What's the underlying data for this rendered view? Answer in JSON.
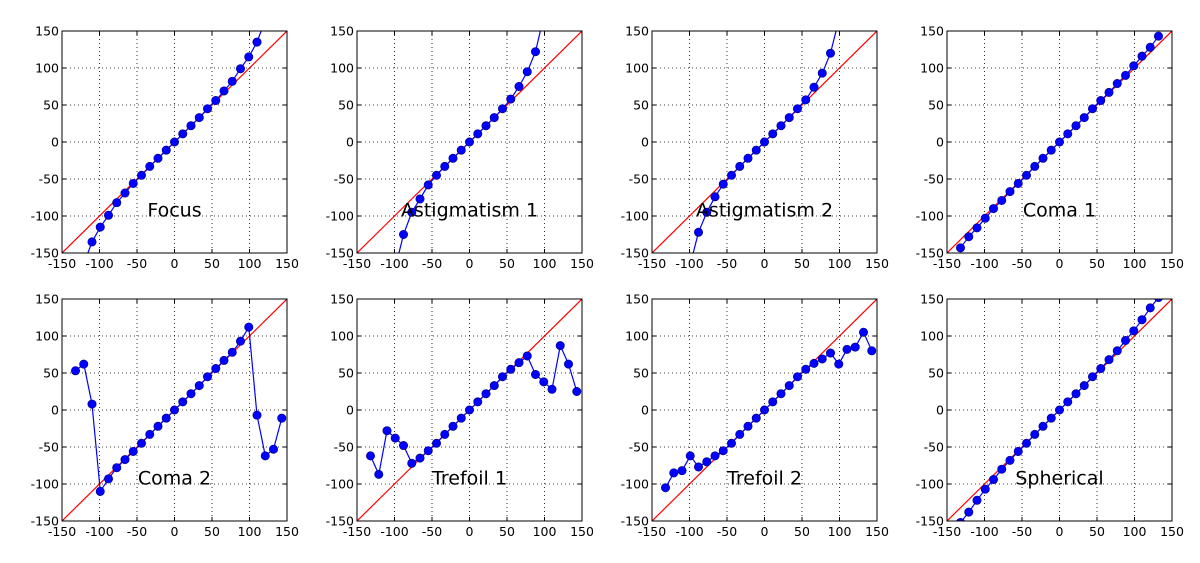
{
  "chart_data": [
    {
      "type": "line",
      "title": "Focus",
      "xlim": [
        -150,
        150
      ],
      "ylim": [
        -150,
        150
      ],
      "xticks": [
        "-150",
        "-100",
        "-50",
        "0",
        "50",
        "100",
        "150"
      ],
      "yticks": [
        "150",
        "100",
        "50",
        "0",
        "-50",
        "-100",
        "-150"
      ],
      "grid": true,
      "reference_line": {
        "color": "#ff0000",
        "x": [
          -150,
          150
        ],
        "y": [
          -150,
          150
        ]
      },
      "series": [
        {
          "color": "#0000ff",
          "x": [
            -121,
            -110,
            -99,
            -88,
            -77,
            -66,
            -55,
            -44,
            -33,
            -22,
            -11,
            0,
            11,
            22,
            33,
            44,
            55,
            66,
            77,
            88,
            99,
            110,
            121
          ],
          "y": [
            -165,
            -135,
            -115,
            -99,
            -82,
            -69,
            -56,
            -45,
            -33,
            -22,
            -11,
            0,
            11,
            22,
            33,
            45,
            56,
            69,
            82,
            99,
            115,
            135,
            165
          ]
        }
      ]
    },
    {
      "type": "line",
      "title": "Astigmatism 1",
      "xlim": [
        -150,
        150
      ],
      "ylim": [
        -150,
        150
      ],
      "xticks": [
        "-150",
        "-100",
        "-50",
        "0",
        "50",
        "100",
        "150"
      ],
      "yticks": [
        "150",
        "100",
        "50",
        "0",
        "-50",
        "-100",
        "-150"
      ],
      "grid": true,
      "reference_line": {
        "color": "#ff0000",
        "x": [
          -150,
          150
        ],
        "y": [
          -150,
          150
        ]
      },
      "series": [
        {
          "color": "#0000ff",
          "x": [
            -99,
            -88,
            -77,
            -66,
            -55,
            -44,
            -33,
            -22,
            -11,
            0,
            11,
            22,
            33,
            44,
            55,
            66,
            77,
            88,
            99
          ],
          "y": [
            -170,
            -125,
            -95,
            -77,
            -58,
            -45,
            -33,
            -22,
            -11,
            0,
            11,
            22,
            33,
            45,
            58,
            75,
            95,
            122,
            170
          ]
        }
      ]
    },
    {
      "type": "line",
      "title": "Astigmatism 2",
      "xlim": [
        -150,
        150
      ],
      "ylim": [
        -150,
        150
      ],
      "xticks": [
        "-150",
        "-100",
        "-50",
        "0",
        "50",
        "100",
        "150"
      ],
      "yticks": [
        "150",
        "100",
        "50",
        "0",
        "-50",
        "-100",
        "-150"
      ],
      "grid": true,
      "reference_line": {
        "color": "#ff0000",
        "x": [
          -150,
          150
        ],
        "y": [
          -150,
          150
        ]
      },
      "series": [
        {
          "color": "#0000ff",
          "x": [
            -99,
            -88,
            -77,
            -66,
            -55,
            -44,
            -33,
            -22,
            -11,
            0,
            11,
            22,
            33,
            44,
            55,
            66,
            77,
            88,
            99
          ],
          "y": [
            -165,
            -122,
            -95,
            -74,
            -57,
            -45,
            -33,
            -22,
            -11,
            0,
            11,
            22,
            33,
            45,
            57,
            74,
            93,
            120,
            165
          ]
        }
      ]
    },
    {
      "type": "line",
      "title": "Coma 1",
      "xlim": [
        -150,
        150
      ],
      "ylim": [
        -150,
        150
      ],
      "xticks": [
        "-150",
        "-100",
        "-50",
        "0",
        "50",
        "100",
        "150"
      ],
      "yticks": [
        "150",
        "100",
        "50",
        "0",
        "-50",
        "-100",
        "-150"
      ],
      "grid": true,
      "reference_line": {
        "color": "#ff0000",
        "x": [
          -150,
          150
        ],
        "y": [
          -150,
          150
        ]
      },
      "series": [
        {
          "color": "#0000ff",
          "x": [
            -132,
            -121,
            -110,
            -99,
            -88,
            -77,
            -66,
            -55,
            -44,
            -33,
            -22,
            -11,
            0,
            11,
            22,
            33,
            44,
            55,
            66,
            77,
            88,
            99,
            110,
            121,
            132
          ],
          "y": [
            -143,
            -128,
            -116,
            -103,
            -90,
            -79,
            -67,
            -56,
            -45,
            -33,
            -22,
            -11,
            0,
            11,
            22,
            33,
            45,
            56,
            67,
            79,
            90,
            103,
            116,
            128,
            143
          ]
        }
      ]
    },
    {
      "type": "line",
      "title": "Coma 2",
      "xlim": [
        -150,
        150
      ],
      "ylim": [
        -150,
        150
      ],
      "xticks": [
        "-150",
        "-100",
        "-50",
        "0",
        "50",
        "100",
        "150"
      ],
      "yticks": [
        "150",
        "100",
        "50",
        "0",
        "-50",
        "-100",
        "-150"
      ],
      "grid": true,
      "reference_line": {
        "color": "#ff0000",
        "x": [
          -150,
          150
        ],
        "y": [
          -150,
          150
        ]
      },
      "series": [
        {
          "color": "#0000ff",
          "x": [
            -132,
            -121,
            -110,
            -99,
            -88,
            -77,
            -66,
            -55,
            -44,
            -33,
            -22,
            -11,
            0,
            11,
            22,
            33,
            44,
            55,
            66,
            77,
            88,
            99,
            110,
            121,
            132,
            143
          ],
          "y": [
            53,
            62,
            8,
            -110,
            -93,
            -78,
            -67,
            -56,
            -45,
            -33,
            -22,
            -11,
            0,
            11,
            22,
            33,
            45,
            56,
            67,
            78,
            93,
            112,
            -7,
            -62,
            -53,
            -11
          ]
        }
      ]
    },
    {
      "type": "line",
      "title": "Trefoil 1",
      "xlim": [
        -150,
        150
      ],
      "ylim": [
        -150,
        150
      ],
      "xticks": [
        "-150",
        "-100",
        "-50",
        "0",
        "50",
        "100",
        "150"
      ],
      "yticks": [
        "150",
        "100",
        "50",
        "0",
        "-50",
        "-100",
        "-150"
      ],
      "grid": true,
      "reference_line": {
        "color": "#ff0000",
        "x": [
          -150,
          150
        ],
        "y": [
          -150,
          150
        ]
      },
      "series": [
        {
          "color": "#0000ff",
          "x": [
            -132,
            -121,
            -110,
            -99,
            -88,
            -77,
            -66,
            -55,
            -44,
            -33,
            -22,
            -11,
            0,
            11,
            22,
            33,
            44,
            55,
            66,
            77,
            88,
            99,
            110,
            121,
            132,
            143
          ],
          "y": [
            -62,
            -87,
            -28,
            -38,
            -48,
            -72,
            -65,
            -55,
            -45,
            -33,
            -22,
            -11,
            0,
            11,
            22,
            33,
            45,
            55,
            64,
            73,
            48,
            38,
            28,
            87,
            62,
            25
          ]
        }
      ]
    },
    {
      "type": "line",
      "title": "Trefoil 2",
      "xlim": [
        -150,
        150
      ],
      "ylim": [
        -150,
        150
      ],
      "xticks": [
        "-150",
        "-100",
        "-50",
        "0",
        "50",
        "100",
        "150"
      ],
      "yticks": [
        "150",
        "100",
        "50",
        "0",
        "-50",
        "-100",
        "-150"
      ],
      "grid": true,
      "reference_line": {
        "color": "#ff0000",
        "x": [
          -150,
          150
        ],
        "y": [
          -150,
          150
        ]
      },
      "series": [
        {
          "color": "#0000ff",
          "x": [
            -132,
            -121,
            -110,
            -99,
            -88,
            -77,
            -66,
            -55,
            -44,
            -33,
            -22,
            -11,
            0,
            11,
            22,
            33,
            44,
            55,
            66,
            77,
            88,
            99,
            110,
            121,
            132,
            143
          ],
          "y": [
            -105,
            -85,
            -82,
            -62,
            -77,
            -70,
            -62,
            -55,
            -45,
            -33,
            -22,
            -11,
            0,
            11,
            22,
            33,
            45,
            55,
            63,
            69,
            77,
            62,
            82,
            85,
            105,
            80
          ]
        }
      ]
    },
    {
      "type": "line",
      "title": "Spherical",
      "xlim": [
        -150,
        150
      ],
      "ylim": [
        -150,
        150
      ],
      "xticks": [
        "-150",
        "-100",
        "-50",
        "0",
        "50",
        "100",
        "150"
      ],
      "yticks": [
        "150",
        "100",
        "50",
        "0",
        "-50",
        "-100",
        "-150"
      ],
      "grid": true,
      "reference_line": {
        "color": "#ff0000",
        "x": [
          -150,
          150
        ],
        "y": [
          -150,
          150
        ]
      },
      "series": [
        {
          "color": "#0000ff",
          "x": [
            -132,
            -121,
            -110,
            -99,
            -88,
            -77,
            -66,
            -55,
            -44,
            -33,
            -22,
            -11,
            0,
            11,
            22,
            33,
            44,
            55,
            66,
            77,
            88,
            99,
            110,
            121,
            132
          ],
          "y": [
            -152,
            -138,
            -122,
            -107,
            -94,
            -80,
            -68,
            -56,
            -45,
            -33,
            -22,
            -11,
            0,
            11,
            22,
            33,
            45,
            56,
            68,
            80,
            94,
            107,
            122,
            138,
            152
          ]
        }
      ]
    }
  ]
}
